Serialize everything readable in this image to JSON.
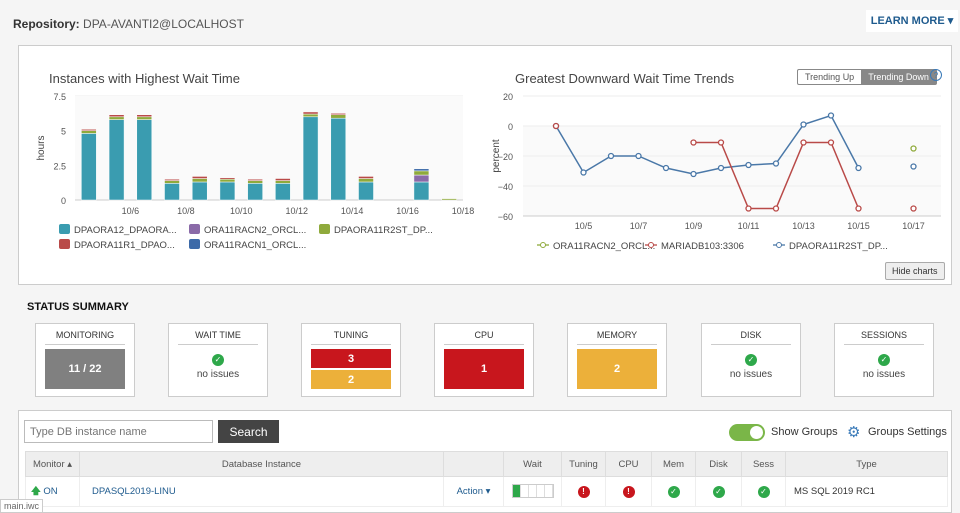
{
  "header": {
    "repo_label": "Repository:",
    "repo_value": "DPA-AVANTI2@LOCALHOST",
    "learn_more": "LEARN MORE ▾"
  },
  "chart_data": [
    {
      "type": "bar",
      "stacked": true,
      "title": "Instances with Highest Wait Time",
      "ylabel": "hours",
      "ylim": [
        0,
        7.5
      ],
      "yticks": [
        "0",
        "2.5",
        "5",
        "7.5"
      ],
      "categories": [
        "10/5",
        "10/6",
        "10/7",
        "10/8",
        "10/9",
        "10/10",
        "10/11",
        "10/12",
        "10/13",
        "10/14",
        "10/15",
        "10/16",
        "10/17",
        "10/18"
      ],
      "xticklabels": [
        "10/6",
        "10/8",
        "10/10",
        "10/12",
        "10/14",
        "10/16",
        "10/18"
      ],
      "legend_position": "bottom",
      "series": [
        {
          "name": "DPAORA12_DPAORA...",
          "color": "#3a9cb0",
          "values": [
            4.8,
            5.8,
            5.8,
            1.2,
            1.3,
            1.3,
            1.2,
            1.2,
            6.0,
            5.9,
            1.3,
            0,
            1.3,
            0
          ]
        },
        {
          "name": "ORA11RACN2_ORCL...",
          "color": "#8a6aa8",
          "values": [
            0,
            0,
            0,
            0,
            0,
            0,
            0,
            0,
            0,
            0,
            0,
            0,
            0.5,
            0
          ]
        },
        {
          "name": "DPAORA11R2ST_DP...",
          "color": "#8faa3c",
          "values": [
            0.2,
            0.2,
            0.2,
            0.2,
            0.25,
            0.2,
            0.2,
            0.2,
            0.2,
            0.25,
            0.25,
            0,
            0.3,
            0.1
          ]
        },
        {
          "name": "DPAORA11R1_DPAO...",
          "color": "#b94a48",
          "values": [
            0.1,
            0.15,
            0.15,
            0.1,
            0.15,
            0.1,
            0.1,
            0.15,
            0.15,
            0.1,
            0.15,
            0,
            0,
            0
          ]
        },
        {
          "name": "ORA11RACN1_ORCL...",
          "color": "#3d6aa8",
          "values": [
            0,
            0,
            0,
            0,
            0,
            0,
            0,
            0,
            0,
            0,
            0,
            0,
            0.15,
            0
          ]
        }
      ]
    },
    {
      "type": "line",
      "title": "Greatest Downward Wait Time Trends",
      "ylabel": "percent",
      "ylim": [
        -60,
        20
      ],
      "yticks": [
        "20",
        "0",
        "-20",
        "-40",
        "-60"
      ],
      "x": [
        "10/4",
        "10/5",
        "10/6",
        "10/7",
        "10/8",
        "10/9",
        "10/10",
        "10/11",
        "10/12",
        "10/13",
        "10/14",
        "10/15",
        "10/16",
        "10/17"
      ],
      "xticklabels": [
        "10/5",
        "10/7",
        "10/9",
        "10/11",
        "10/13",
        "10/15",
        "10/17"
      ],
      "legend_position": "bottom",
      "series": [
        {
          "name": "ORA11RACN2_ORCL...",
          "color": "#8faa3c",
          "values": [
            null,
            null,
            null,
            null,
            null,
            null,
            null,
            null,
            null,
            null,
            null,
            null,
            null,
            -15
          ]
        },
        {
          "name": "MARIADB103:3306",
          "color": "#b94a48",
          "values": [
            0,
            null,
            null,
            null,
            null,
            -11,
            -11,
            -55,
            -55,
            -11,
            -11,
            -55,
            null,
            -55
          ]
        },
        {
          "name": "DPAORA11R2ST_DP...",
          "color": "#4a78a8",
          "values": [
            0,
            -31,
            -20,
            -20,
            -28,
            -32,
            -28,
            -26,
            -25,
            1,
            7,
            -28,
            null,
            -27
          ]
        }
      ]
    }
  ],
  "trend_toggle": {
    "up": "Trending Up",
    "down": "Trending Down",
    "selected": "Trending Down",
    "help": "?"
  },
  "hide_charts": "Hide charts",
  "status": {
    "title": "STATUS SUMMARY",
    "cards": [
      {
        "label": "MONITORING",
        "value": "11 / 22",
        "color": "#808080"
      },
      {
        "label": "WAIT TIME",
        "text": "no issues"
      },
      {
        "label": "TUNING",
        "red": "3",
        "yellow": "2"
      },
      {
        "label": "CPU",
        "value": "1",
        "color": "#c8161d"
      },
      {
        "label": "MEMORY",
        "value": "2",
        "color": "#ecb03a"
      },
      {
        "label": "DISK",
        "text": "no issues"
      },
      {
        "label": "SESSIONS",
        "text": "no issues"
      }
    ]
  },
  "toolbar": {
    "search_placeholder": "Type DB instance name",
    "search_button": "Search",
    "show_groups": "Show Groups",
    "show_groups_on": true,
    "groups_settings": "Groups Settings"
  },
  "table": {
    "headers": [
      "Monitor ▴",
      "Database Instance",
      "",
      "Wait",
      "Tuning",
      "CPU",
      "Mem",
      "Disk",
      "Sess",
      "Type"
    ],
    "rows": [
      {
        "monitor": "ON",
        "instance": "DPASQL2019-LINU",
        "action": "Action ▾",
        "wait_level": 0.2,
        "tuning": "error",
        "cpu": "error",
        "mem": "ok",
        "disk": "ok",
        "sess": "ok",
        "type": "MS SQL 2019 RC1"
      }
    ]
  },
  "footer": "main.iwc"
}
